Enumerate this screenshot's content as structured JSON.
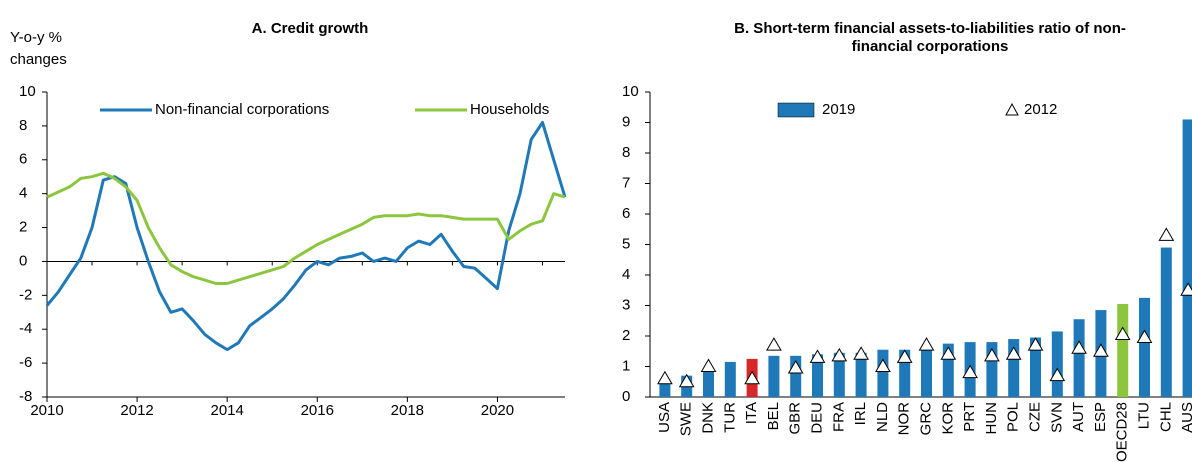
{
  "chart_data": [
    {
      "type": "line",
      "title": "A. Credit growth",
      "ylabel": "Y-o-y % changes",
      "x": [
        2010,
        2010.25,
        2010.5,
        2010.75,
        2011,
        2011.25,
        2011.5,
        2011.75,
        2012,
        2012.25,
        2012.5,
        2012.75,
        2013,
        2013.25,
        2013.5,
        2013.75,
        2014,
        2014.25,
        2014.5,
        2014.75,
        2015,
        2015.25,
        2015.5,
        2015.75,
        2016,
        2016.25,
        2016.5,
        2016.75,
        2017,
        2017.25,
        2017.5,
        2017.75,
        2018,
        2018.25,
        2018.5,
        2018.75,
        2019,
        2019.25,
        2019.5,
        2019.75,
        2020,
        2020.25,
        2020.5,
        2020.75,
        2021,
        2021.25,
        2021.5
      ],
      "series": [
        {
          "name": "Non-financial corporations",
          "color": "#1f78b8",
          "values": [
            -2.6,
            -1.8,
            -0.8,
            0.2,
            2.0,
            4.8,
            5.0,
            4.6,
            2.0,
            0.0,
            -1.8,
            -3.0,
            -2.8,
            -3.5,
            -4.3,
            -4.8,
            -5.2,
            -4.8,
            -3.8,
            -3.3,
            -2.8,
            -2.2,
            -1.4,
            -0.5,
            0.0,
            -0.2,
            0.2,
            0.3,
            0.5,
            0.0,
            0.2,
            0.0,
            0.8,
            1.2,
            1.0,
            1.6,
            0.6,
            -0.3,
            -0.4,
            -1.0,
            -1.6,
            1.8,
            4.0,
            7.2,
            8.2,
            6.0,
            3.8
          ]
        },
        {
          "name": "Households",
          "color": "#8cc63f",
          "values": [
            3.8,
            4.1,
            4.4,
            4.9,
            5.0,
            5.2,
            4.9,
            4.4,
            3.6,
            2.0,
            0.8,
            -0.2,
            -0.6,
            -0.9,
            -1.1,
            -1.3,
            -1.3,
            -1.1,
            -0.9,
            -0.7,
            -0.5,
            -0.3,
            0.2,
            0.6,
            1.0,
            1.3,
            1.6,
            1.9,
            2.2,
            2.6,
            2.7,
            2.7,
            2.7,
            2.8,
            2.7,
            2.7,
            2.6,
            2.5,
            2.5,
            2.5,
            2.5,
            1.3,
            1.8,
            2.2,
            2.4,
            4.0,
            3.8
          ]
        }
      ],
      "xlim": [
        2010,
        2021.5
      ],
      "xticks": [
        2010,
        2012,
        2014,
        2016,
        2018,
        2020
      ],
      "ylim": [
        -8,
        10
      ],
      "yticks": [
        -8,
        -6,
        -4,
        -2,
        0,
        2,
        4,
        6,
        8,
        10
      ]
    },
    {
      "type": "bar",
      "title": "B. Short-term financial assets-to-liabilities ratio of non-financial corporations",
      "categories": [
        "USA",
        "SWE",
        "DNK",
        "TUR",
        "ITA",
        "BEL",
        "GBR",
        "DEU",
        "FRA",
        "IRL",
        "NLD",
        "NOR",
        "GRC",
        "KOR",
        "PRT",
        "HUN",
        "POL",
        "CZE",
        "SVN",
        "AUT",
        "ESP",
        "OECD28",
        "LTU",
        "CHL",
        "AUS"
      ],
      "series": [
        {
          "name": "2019",
          "color": "#1f78b8",
          "colors": [
            "#1f78b8",
            "#1f78b8",
            "#1f78b8",
            "#1f78b8",
            "#d62828",
            "#1f78b8",
            "#1f78b8",
            "#1f78b8",
            "#1f78b8",
            "#1f78b8",
            "#1f78b8",
            "#1f78b8",
            "#1f78b8",
            "#1f78b8",
            "#1f78b8",
            "#1f78b8",
            "#1f78b8",
            "#1f78b8",
            "#1f78b8",
            "#1f78b8",
            "#1f78b8",
            "#8cc63f",
            "#1f78b8",
            "#1f78b8",
            "#1f78b8"
          ],
          "values": [
            0.45,
            0.7,
            0.85,
            1.15,
            1.25,
            1.35,
            1.35,
            1.4,
            1.45,
            1.45,
            1.55,
            1.55,
            1.6,
            1.75,
            1.8,
            1.8,
            1.9,
            1.95,
            2.15,
            2.55,
            2.85,
            3.05,
            3.25,
            4.9,
            9.1
          ]
        },
        {
          "name": "2012",
          "marker": "triangle",
          "color": "#ffffff",
          "values": [
            0.6,
            0.5,
            1.0,
            null,
            0.6,
            1.7,
            0.95,
            1.3,
            1.35,
            1.4,
            1.0,
            1.3,
            1.7,
            1.4,
            0.8,
            1.35,
            1.4,
            1.7,
            0.7,
            1.6,
            1.5,
            2.05,
            1.95,
            5.3,
            3.5
          ]
        }
      ],
      "ylim": [
        0,
        10
      ],
      "yticks": [
        0,
        1,
        2,
        3,
        4,
        5,
        6,
        7,
        8,
        9,
        10
      ]
    }
  ]
}
